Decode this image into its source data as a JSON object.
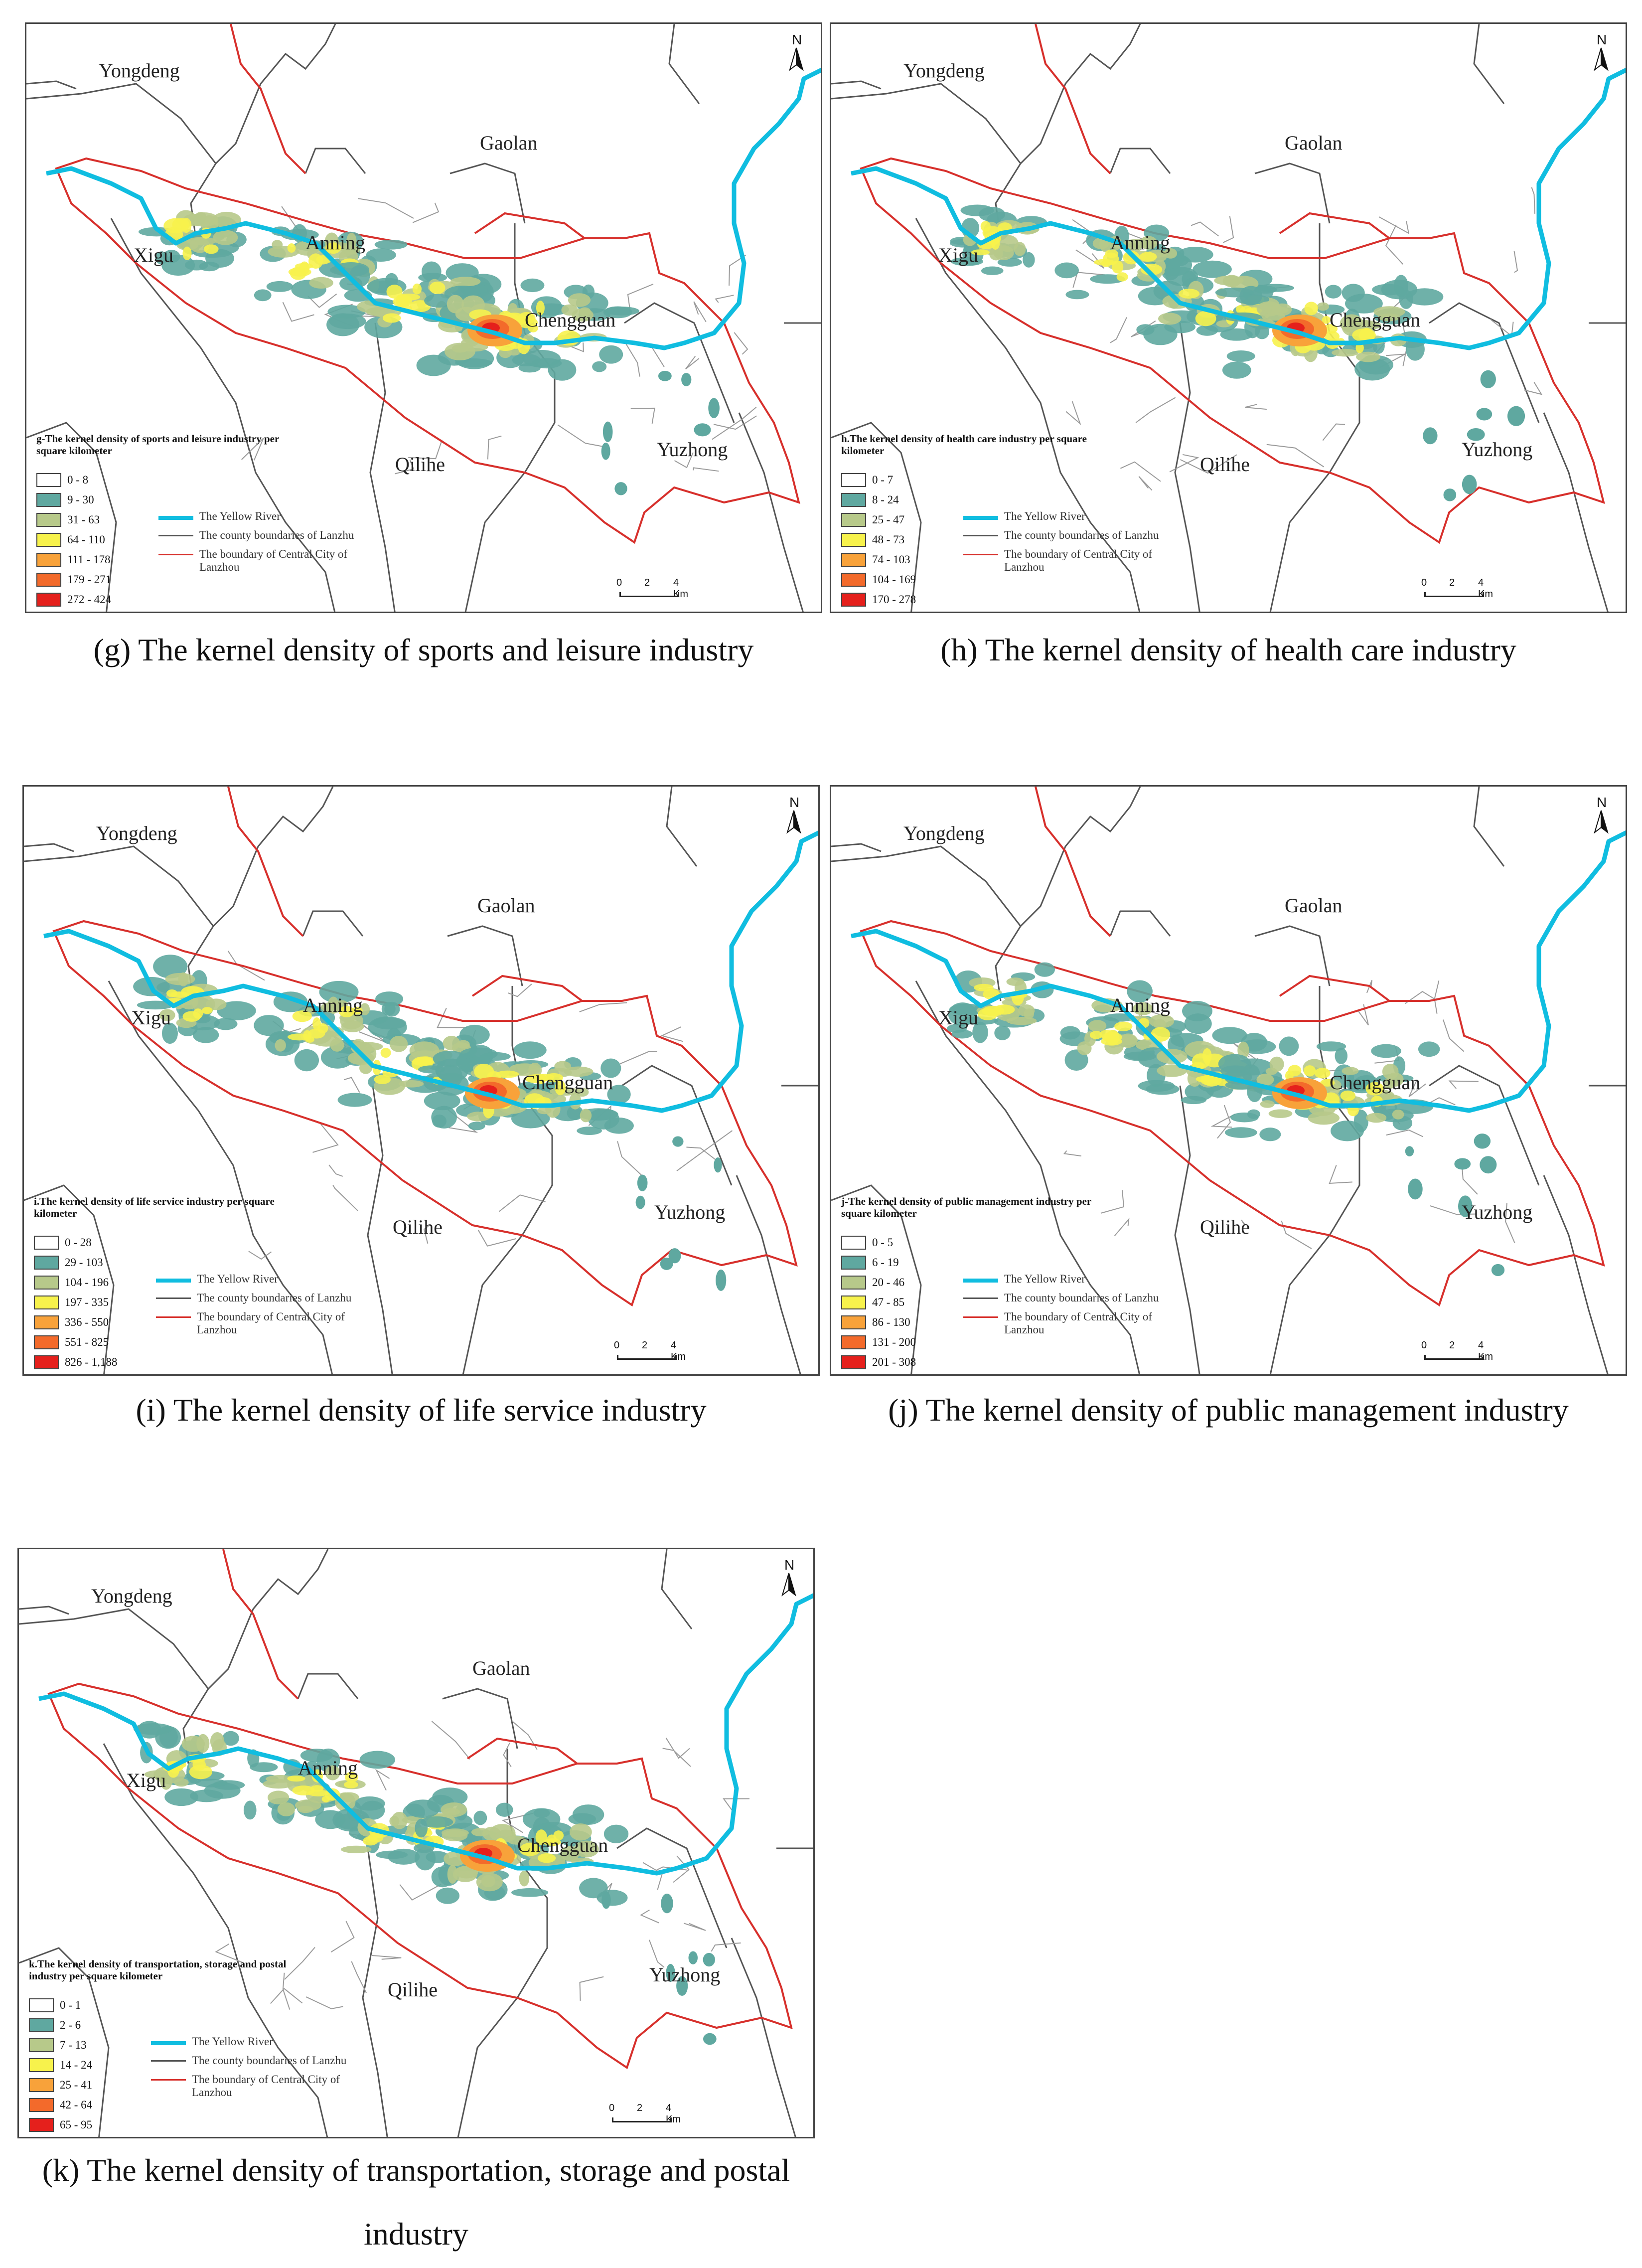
{
  "common": {
    "place_names": [
      "Yongdeng",
      "Gaolan",
      "Xigu",
      "Anning",
      "Chengguan",
      "Qilihe",
      "Yuzhong"
    ],
    "north_label": "N",
    "legend_lines": [
      {
        "label": "The Yellow River",
        "color": "#10bde0"
      },
      {
        "label": "The county boundaries of Lanzhu",
        "color": "#555555"
      },
      {
        "label": "The boundary of Central City of Lanzhou",
        "color": "#d7302c"
      }
    ],
    "scale": {
      "ticks": [
        "0",
        "2",
        "4 Km"
      ]
    },
    "class_colors": [
      "#ffffff",
      "#5fa8a0",
      "#b7c98a",
      "#f7f24c",
      "#f8a23a",
      "#f36a2b",
      "#e5201c"
    ]
  },
  "panels": [
    {
      "id": "g",
      "legend_title": "g-The kernel density of sports and leisure industry per square kilometer",
      "classes": [
        "0 - 8",
        "9 - 30",
        "31 - 63",
        "64 - 110",
        "111 - 178",
        "179 - 271",
        "272 - 424"
      ],
      "caption": "(g) The kernel density of sports and leisure industry"
    },
    {
      "id": "h",
      "legend_title": "h.The kernel density of health care industry per square kilometer",
      "classes": [
        "0 - 7",
        "8 - 24",
        "25 - 47",
        "48 - 73",
        "74 - 103",
        "104 - 169",
        "170 - 278"
      ],
      "caption": "(h) The kernel density of health care industry"
    },
    {
      "id": "i",
      "legend_title": "i.The kernel density of life service industry per square kilometer",
      "classes": [
        "0 - 28",
        "29 - 103",
        "104 - 196",
        "197 - 335",
        "336 - 550",
        "551 - 825",
        "826 - 1,188"
      ],
      "caption": "(i) The kernel density of life service industry"
    },
    {
      "id": "j",
      "legend_title": "j-The kernel density of public management industry per square kilometer",
      "classes": [
        "0 - 5",
        "6 - 19",
        "20 - 46",
        "47 - 85",
        "86 - 130",
        "131 - 200",
        "201 - 308"
      ],
      "caption": "(j) The kernel density of public management industry"
    },
    {
      "id": "k",
      "legend_title": "k.The kernel density of transportation, storage and postal industry per square kilometer",
      "classes": [
        "0 - 1",
        "2 - 6",
        "7 - 13",
        "14 - 24",
        "25 - 41",
        "42 - 64",
        "65 - 95"
      ],
      "caption": "(k) The kernel density of transportation, storage and postal industry"
    }
  ]
}
